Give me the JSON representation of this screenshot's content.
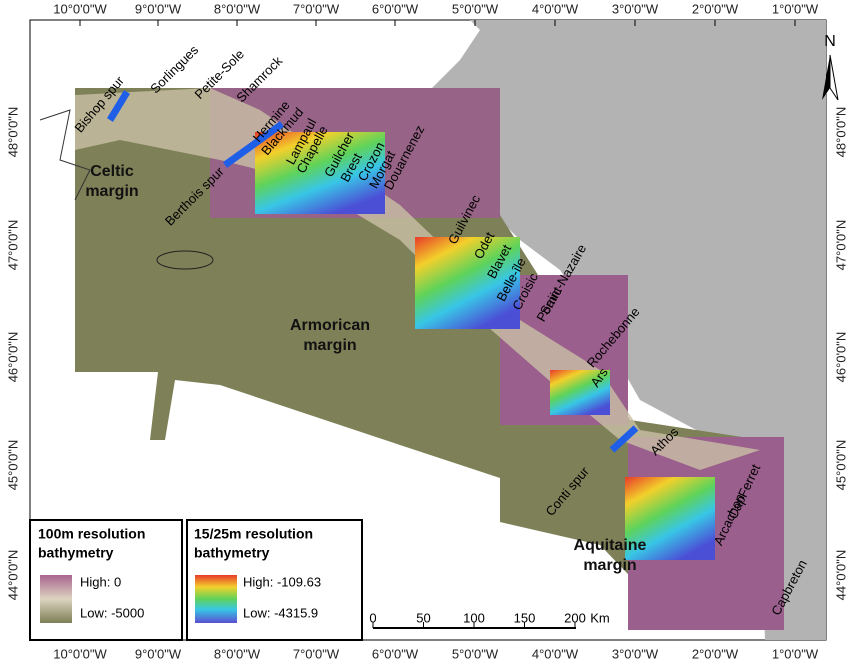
{
  "longitudes": [
    "10°0'0\"W",
    "9°0'0\"W",
    "8°0'0\"W",
    "7°0'0\"W",
    "6°0'0\"W",
    "5°0'0\"W",
    "4°0'0\"W",
    "3°0'0\"W",
    "2°0'0\"W",
    "1°0'0\"W"
  ],
  "latitudes": [
    "48°0'0\"N",
    "47°0'0\"N",
    "46°0'0\"N",
    "45°0'0\"N",
    "44°0'0\"N"
  ],
  "north": "N",
  "canyons": [
    "Sorlingues",
    "Petite-Sole",
    "Shamrock",
    "Bishop spur",
    "Hermine",
    "Blackmud",
    "Lampaul",
    "Chapelle",
    "Guilcher",
    "Brest",
    "Crozon",
    "Morgat",
    "Douarnenez",
    "Berthois spur",
    "Guilvinec",
    "Odet",
    "Blavet",
    "Belle-île",
    "Croisic",
    "Saint-Nazaire",
    "Pornic",
    "Rochebonne",
    "Ars",
    "Athos",
    "Conti spur",
    "CapFerret",
    "Arcachon",
    "Capbreton"
  ],
  "regions": [
    [
      "Celtic",
      "margin"
    ],
    [
      "Armorican",
      "margin"
    ],
    [
      "Aquitaine",
      "margin"
    ]
  ],
  "legend": [
    {
      "title": [
        "100m resolution",
        "bathymetry"
      ],
      "high": "High: 0",
      "low": "Low: -5000"
    },
    {
      "title": [
        "15/25m resolution",
        "bathymetry"
      ],
      "high": "High: -109.63",
      "low": "Low: -4315.9"
    }
  ],
  "scale": {
    "labels": [
      "0",
      "50",
      "100",
      "150",
      "200"
    ],
    "unit": "Km"
  }
}
